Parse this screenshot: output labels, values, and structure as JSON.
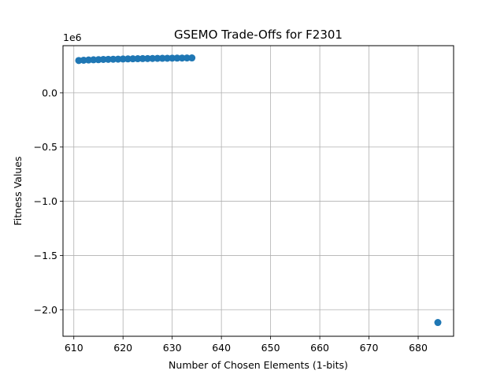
{
  "chart_data": {
    "type": "scatter",
    "title": "GSEMO Trade-Offs for F2301",
    "xlabel": "Number of Chosen Elements (1-bits)",
    "ylabel": "Fitness Values",
    "y_offset_text": "1e6",
    "xlim": [
      607.8,
      687.2
    ],
    "ylim": [
      -2.245,
      0.435
    ],
    "y_scale_factor": 1000000,
    "grid": true,
    "marker_color": "#1f77b4",
    "x_ticks": [
      610,
      620,
      630,
      640,
      650,
      660,
      670,
      680
    ],
    "x_tick_labels": [
      "610",
      "620",
      "630",
      "640",
      "650",
      "660",
      "670",
      "680"
    ],
    "y_ticks": [
      -2.0,
      -1.5,
      -1.0,
      -0.5,
      0.0
    ],
    "y_tick_labels": [
      "−2.0",
      "−1.5",
      "−1.0",
      "−0.5",
      "0.0"
    ],
    "points": [
      {
        "x": 611,
        "y": 298000
      },
      {
        "x": 612,
        "y": 301000
      },
      {
        "x": 613,
        "y": 303000
      },
      {
        "x": 614,
        "y": 305000
      },
      {
        "x": 615,
        "y": 306000
      },
      {
        "x": 616,
        "y": 308000
      },
      {
        "x": 617,
        "y": 309000
      },
      {
        "x": 618,
        "y": 310000
      },
      {
        "x": 619,
        "y": 311000
      },
      {
        "x": 620,
        "y": 312000
      },
      {
        "x": 621,
        "y": 313000
      },
      {
        "x": 622,
        "y": 314000
      },
      {
        "x": 623,
        "y": 315000
      },
      {
        "x": 624,
        "y": 316000
      },
      {
        "x": 625,
        "y": 316500
      },
      {
        "x": 626,
        "y": 317000
      },
      {
        "x": 627,
        "y": 318000
      },
      {
        "x": 628,
        "y": 318500
      },
      {
        "x": 629,
        "y": 319000
      },
      {
        "x": 630,
        "y": 320000
      },
      {
        "x": 631,
        "y": 320500
      },
      {
        "x": 632,
        "y": 321000
      },
      {
        "x": 633,
        "y": 321500
      },
      {
        "x": 634,
        "y": 322000
      },
      {
        "x": 684,
        "y": -2118000
      }
    ]
  }
}
